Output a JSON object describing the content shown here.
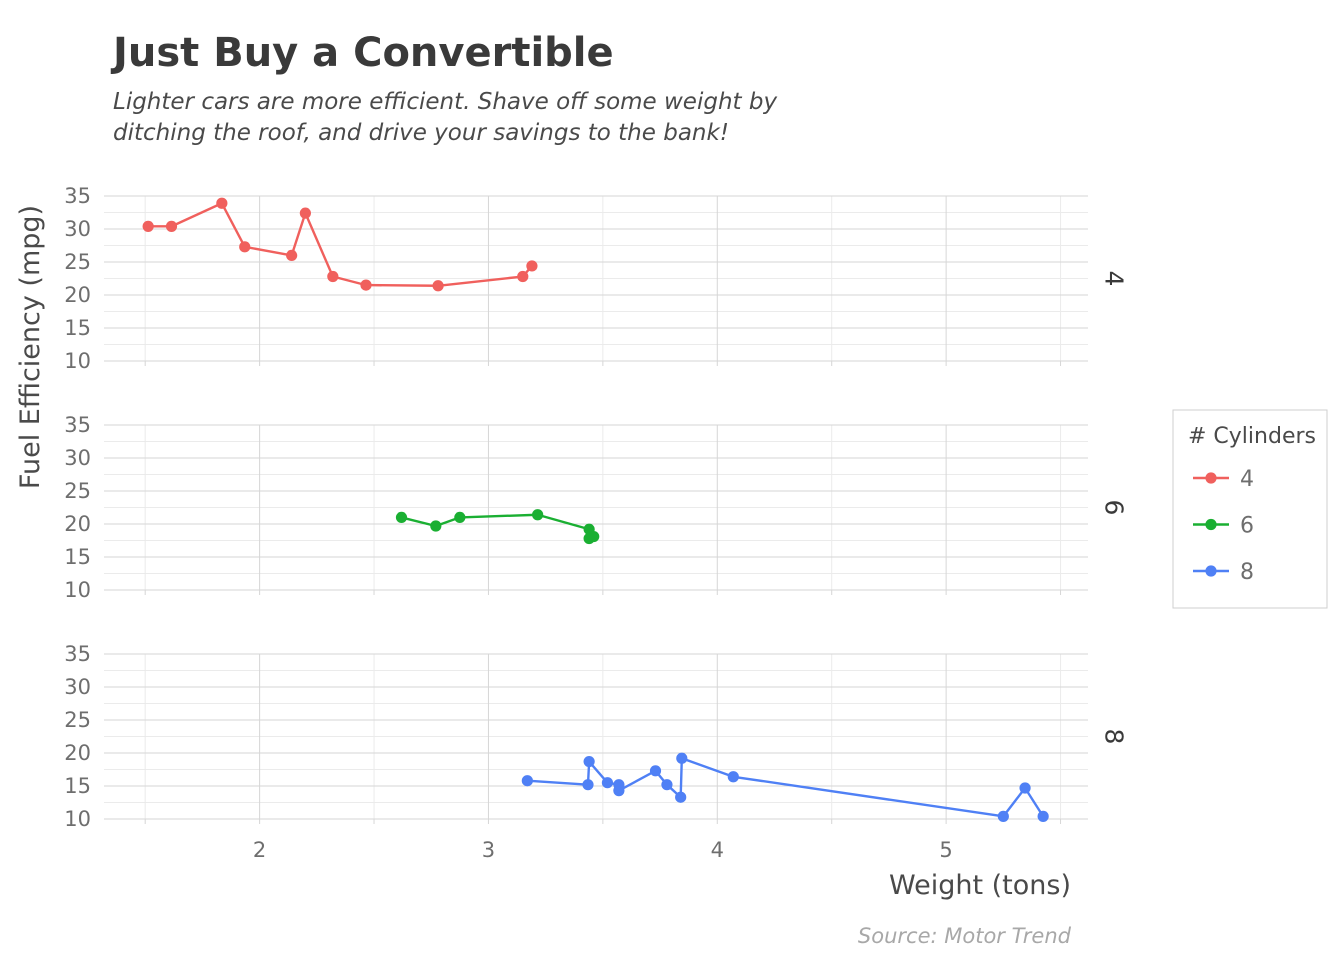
{
  "chart_data": {
    "type": "line",
    "title": "Just Buy a Convertible",
    "subtitle_lines": [
      "Lighter cars are more efficient. Shave off some weight by",
      "ditching the roof, and drive your savings to the bank!"
    ],
    "xlabel": "Weight (tons)",
    "ylabel": "Fuel Efficiency (mpg)",
    "caption": "Source: Motor Trend",
    "xlim": [
      1.32,
      5.62
    ],
    "ylim": [
      10,
      35
    ],
    "x_ticks": [
      2,
      3,
      4,
      5
    ],
    "y_ticks": [
      10,
      15,
      20,
      25,
      30,
      35
    ],
    "grid": true,
    "facets": [
      "4",
      "6",
      "8"
    ],
    "legend": {
      "title": "# Cylinders",
      "position": "right"
    },
    "series": [
      {
        "name": "4",
        "color": "#f0605d",
        "points": [
          [
            1.513,
            30.4
          ],
          [
            1.615,
            30.4
          ],
          [
            1.835,
            33.9
          ],
          [
            1.935,
            27.3
          ],
          [
            2.14,
            26.0
          ],
          [
            2.2,
            32.4
          ],
          [
            2.32,
            22.8
          ],
          [
            2.465,
            21.5
          ],
          [
            2.78,
            21.4
          ],
          [
            3.15,
            22.8
          ],
          [
            3.19,
            24.4
          ]
        ]
      },
      {
        "name": "6",
        "color": "#1aaf32",
        "points": [
          [
            2.62,
            21.0
          ],
          [
            2.77,
            19.7
          ],
          [
            2.875,
            21.0
          ],
          [
            3.215,
            21.4
          ],
          [
            3.44,
            19.2
          ],
          [
            3.44,
            17.8
          ],
          [
            3.46,
            18.1
          ]
        ]
      },
      {
        "name": "8",
        "color": "#4f80f5",
        "points": [
          [
            3.17,
            15.8
          ],
          [
            3.435,
            15.2
          ],
          [
            3.44,
            18.7
          ],
          [
            3.52,
            15.5
          ],
          [
            3.57,
            15.2
          ],
          [
            3.57,
            14.3
          ],
          [
            3.73,
            17.3
          ],
          [
            3.78,
            15.2
          ],
          [
            3.84,
            13.3
          ],
          [
            3.845,
            19.2
          ],
          [
            4.07,
            16.4
          ],
          [
            5.25,
            10.4
          ],
          [
            5.345,
            14.7
          ],
          [
            5.424,
            10.4
          ]
        ]
      }
    ]
  }
}
